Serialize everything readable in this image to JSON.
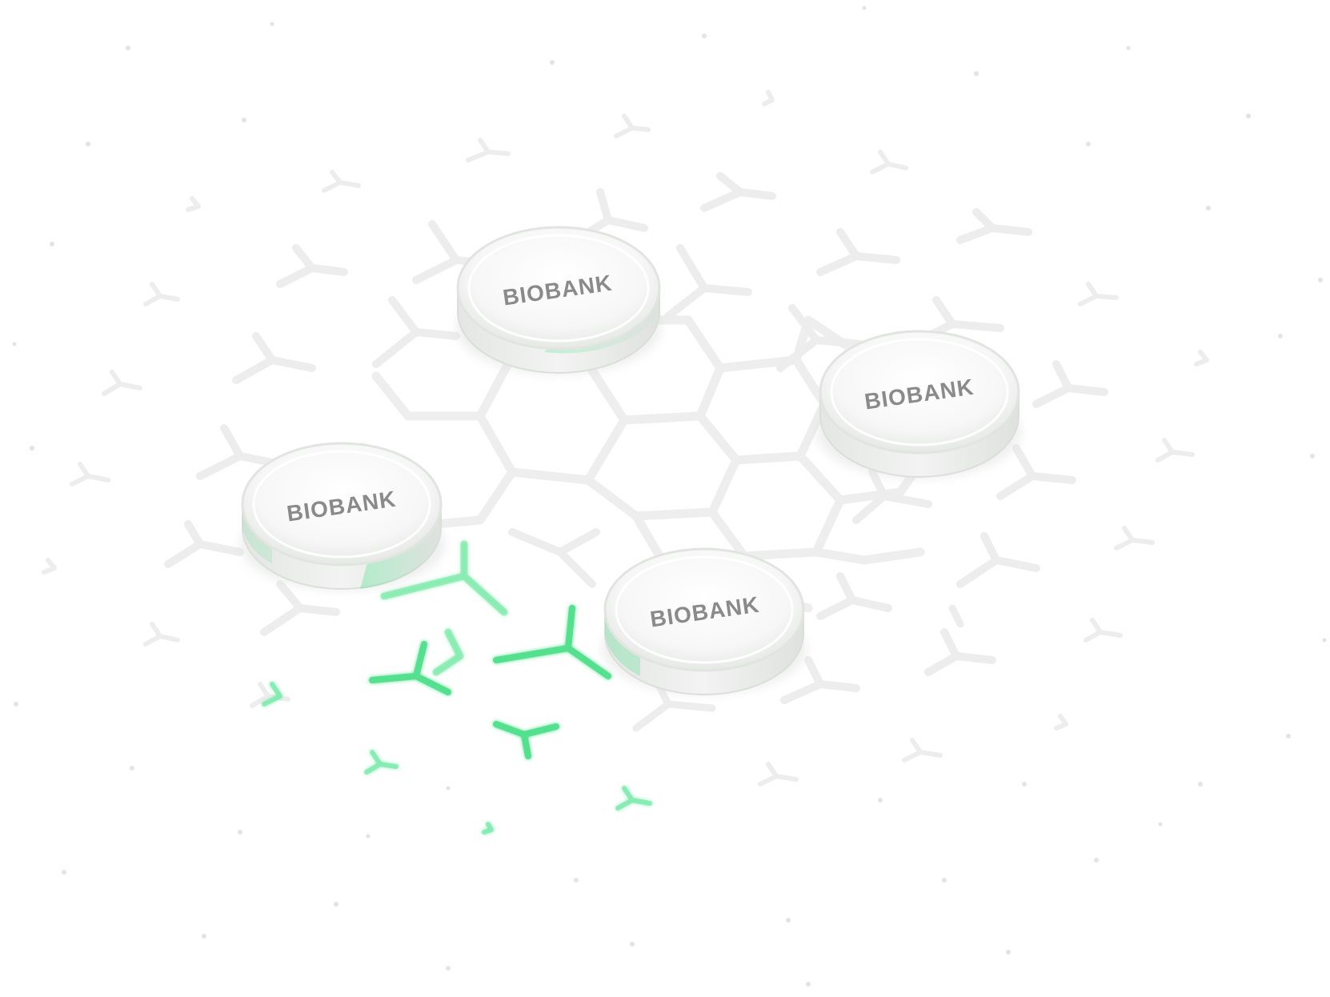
{
  "scene": {
    "description_free": true,
    "background_color": "#ffffff",
    "accent_color": "#33e07a",
    "lattice_color": "#eeeeee"
  },
  "discs": [
    {
      "label": "BIOBANK"
    },
    {
      "label": "BIOBANK"
    },
    {
      "label": "BIOBANK"
    },
    {
      "label": "BIOBANK"
    }
  ]
}
